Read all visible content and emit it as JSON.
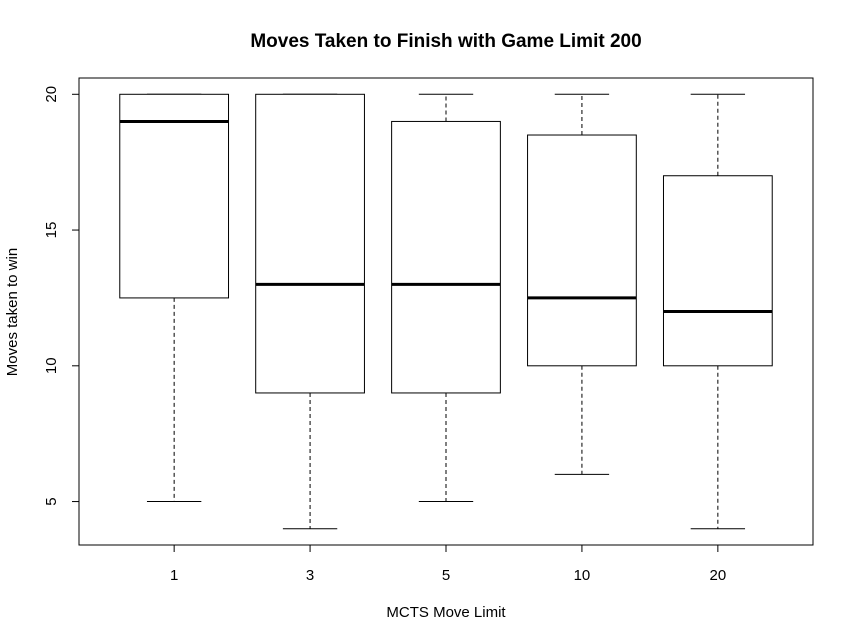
{
  "chart_data": {
    "type": "boxplot",
    "title": "Moves Taken to Finish with Game Limit 200",
    "xlabel": "MCTS Move Limit",
    "ylabel": "Moves taken to win",
    "categories": [
      "1",
      "3",
      "5",
      "10",
      "20"
    ],
    "boxes": [
      {
        "category": "1",
        "min": 5,
        "q1": 12.5,
        "median": 19,
        "q3": 20,
        "max": 20
      },
      {
        "category": "3",
        "min": 4,
        "q1": 9,
        "median": 13,
        "q3": 20,
        "max": 20
      },
      {
        "category": "5",
        "min": 5,
        "q1": 9,
        "median": 13,
        "q3": 19,
        "max": 20
      },
      {
        "category": "10",
        "min": 6,
        "q1": 10,
        "median": 12.5,
        "q3": 18.5,
        "max": 20
      },
      {
        "category": "20",
        "min": 4,
        "q1": 10,
        "median": 12,
        "q3": 17,
        "max": 20
      }
    ],
    "yticks": [
      5,
      10,
      15,
      20
    ],
    "ylim": [
      3.4,
      20.6
    ],
    "grid": false,
    "legend": "none",
    "colors": {
      "box_fill": "#ffffff",
      "stroke": "#000000"
    }
  }
}
